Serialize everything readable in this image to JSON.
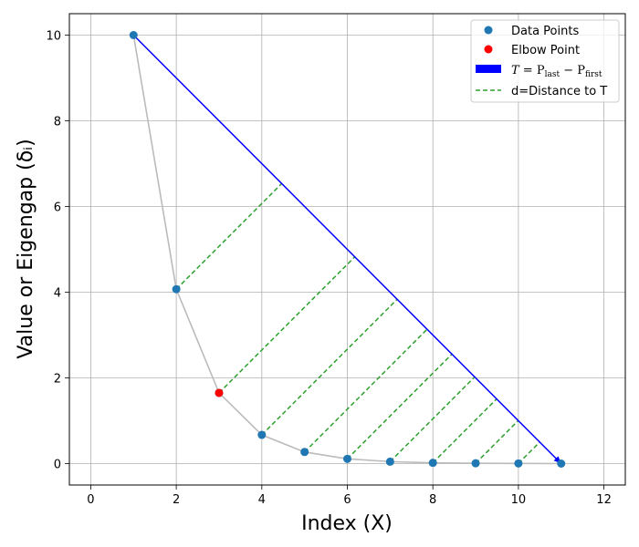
{
  "chart_data": {
    "type": "scatter",
    "xlabel": "Index (X)",
    "ylabel": "Value or Eigengap (δᵢ)",
    "xlim": [
      -0.5,
      12.5
    ],
    "ylim": [
      -0.5,
      10.5
    ],
    "xticks": [
      0,
      2,
      4,
      6,
      8,
      10,
      12
    ],
    "yticks": [
      0,
      2,
      4,
      6,
      8,
      10
    ],
    "grid": true,
    "legend_position": "top-right",
    "points": {
      "name": "Data Points",
      "x": [
        1,
        2,
        3,
        4,
        5,
        6,
        7,
        8,
        9,
        10,
        11
      ],
      "y": [
        10,
        4.07,
        1.65,
        0.67,
        0.27,
        0.11,
        0.045,
        0.018,
        0.007,
        0.003,
        0.0
      ]
    },
    "elbow": {
      "name": "Elbow Point",
      "x": 3,
      "y": 1.65
    },
    "vector": {
      "name": "T=P_last−P_first",
      "from": [
        1,
        10
      ],
      "to": [
        11,
        0
      ]
    },
    "distances": {
      "name": "d=Distance to T",
      "from_x": [
        2,
        3,
        4,
        5,
        6,
        7,
        8,
        9,
        10
      ]
    },
    "colors": {
      "points": "#1f77b4",
      "elbow": "#ff0000",
      "vector": "#0000ff",
      "distance": "#2ca02c",
      "curve": "#bbbbbb",
      "grid": "#b0b0b0"
    }
  },
  "legend": {
    "points_label": "Data Points",
    "elbow_label": "Elbow Point",
    "vector_T": "T",
    "vector_eq": " = P",
    "vector_last": "last",
    "vector_minus": " − P",
    "vector_first": "first",
    "distance_label": "d=Distance to T"
  }
}
